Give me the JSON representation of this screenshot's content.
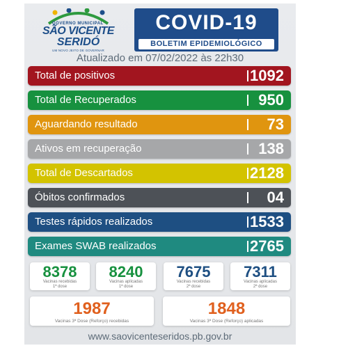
{
  "logo": {
    "top_text": "GOVERNO MUNICIPAL",
    "line1": "SÃO VICENTE",
    "line2": "SERIDÓ",
    "slogan": "UM NOVO JEITO DE GOVERNAR"
  },
  "header": {
    "title": "COVID-19",
    "subtitle": "BOLETIM EPIDEMIOLÓGICO"
  },
  "updated": "Atualizado em 07/02/2022 às 22h30",
  "rows": [
    {
      "label": "Total de positivos",
      "value": "1092",
      "color": "#a2151f"
    },
    {
      "label": "Total de Recuperados",
      "value": "950",
      "color": "#17913f"
    },
    {
      "label": "Aguardando resultado",
      "value": "73",
      "color": "#e0950f"
    },
    {
      "label": "Ativos em recuperação",
      "value": "138",
      "color": "#a6a7a9"
    },
    {
      "label": "Total de Descartados",
      "value": "2128",
      "color": "#d3c300"
    },
    {
      "label": "Óbitos confirmados",
      "value": "04",
      "color": "#4d5157"
    },
    {
      "label": "Testes rápidos realizados",
      "value": "1533",
      "color": "#1e4f82"
    },
    {
      "label": "Exames SWAB realizados",
      "value": "2765",
      "color": "#1f8a80"
    }
  ],
  "vaccines": [
    {
      "value": "8378",
      "caption1": "Vacinas recebidas",
      "caption2": "1ª dose",
      "color": "#17913f"
    },
    {
      "value": "8240",
      "caption1": "Vacinas aplicadas",
      "caption2": "1ª dose",
      "color": "#17913f"
    },
    {
      "value": "7675",
      "caption1": "Vacinas recebidas",
      "caption2": "2ª dose",
      "color": "#1e4f82"
    },
    {
      "value": "7311",
      "caption1": "Vacinas aplicadas",
      "caption2": "2ª dose",
      "color": "#1e4f82"
    }
  ],
  "boosters": [
    {
      "value": "1987",
      "caption": "Vacinas 3ª Dose (Reforço) recebidas",
      "color": "#e0601e"
    },
    {
      "value": "1848",
      "caption": "Vacinas 3ª Dose (Reforço) aplicadas",
      "color": "#e0601e"
    }
  ],
  "footer": "www.saovicenteseridos.pb.gov.br"
}
